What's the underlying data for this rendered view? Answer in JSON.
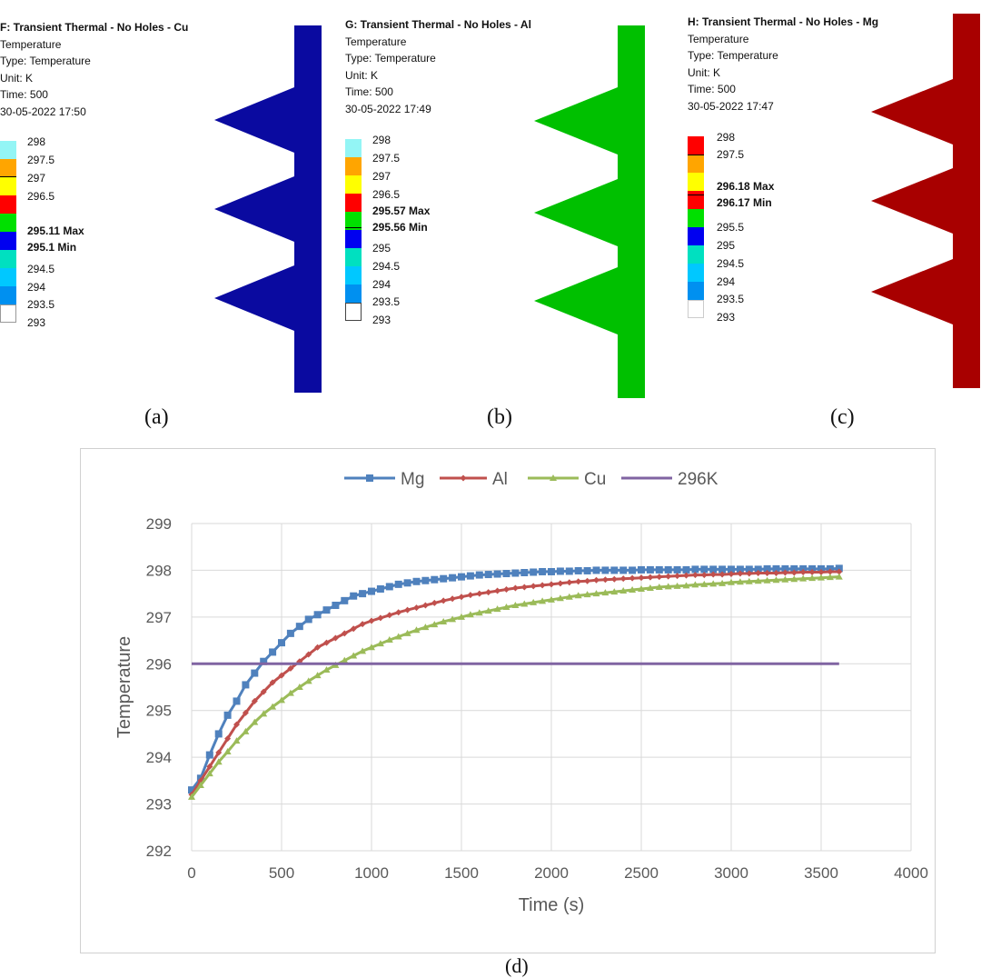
{
  "panels": [
    {
      "id": "a",
      "title": "F: Transient Thermal - No Holes - Cu",
      "lines": [
        "Temperature",
        "Type: Temperature",
        "Unit: K",
        "Time: 500",
        "30-05-2022 17:50"
      ],
      "legend": {
        "ticks": [
          "298",
          "297.5",
          "297",
          "296.5",
          "295.11 Max",
          "295.1 Min",
          "294.5",
          "294",
          "293.5",
          "293"
        ],
        "bold": [
          false,
          false,
          false,
          false,
          true,
          true,
          false,
          false,
          false,
          false
        ]
      },
      "fin_color": "#0a0aa0",
      "caption": "(a)"
    },
    {
      "id": "b",
      "title": "G: Transient Thermal - No Holes - Al",
      "lines": [
        "Temperature",
        "Type: Temperature",
        "Unit: K",
        "Time: 500",
        "30-05-2022 17:49"
      ],
      "legend": {
        "ticks": [
          "298",
          "297.5",
          "297",
          "296.5",
          "295.57 Max",
          "295.56 Min",
          "295",
          "294.5",
          "294",
          "293.5",
          "293"
        ],
        "bold": [
          false,
          false,
          false,
          false,
          true,
          true,
          false,
          false,
          false,
          false,
          false
        ]
      },
      "fin_color": "#00c000",
      "caption": "(b)"
    },
    {
      "id": "c",
      "title": "H: Transient Thermal - No Holes - Mg",
      "lines": [
        "Temperature",
        "Type: Temperature",
        "Unit: K",
        "Time: 500",
        "30-05-2022 17:47"
      ],
      "legend": {
        "ticks": [
          "298",
          "297.5",
          "296.18 Max",
          "296.17 Min",
          "295.5",
          "295",
          "294.5",
          "294",
          "293.5",
          "293"
        ],
        "bold": [
          false,
          false,
          true,
          true,
          false,
          false,
          false,
          false,
          false,
          false
        ]
      },
      "fin_color": "#a80000",
      "caption": "(c)"
    }
  ],
  "contour_colors": [
    "#93f5f5",
    "#ffa500",
    "#ffff00",
    "#ff0000",
    "#00e000",
    "#0000f0",
    "#00e0c0",
    "#00c8ff",
    "#0090f0",
    "#ffffff"
  ],
  "chart_caption": "(d)",
  "chart_data": {
    "type": "line",
    "title": "",
    "xlabel": "Time (s)",
    "ylabel": "Temperature",
    "xlim": [
      0,
      4000
    ],
    "ylim": [
      292,
      299
    ],
    "xticks": [
      0,
      500,
      1000,
      1500,
      2000,
      2500,
      3000,
      3500,
      4000
    ],
    "yticks": [
      292,
      293,
      294,
      295,
      296,
      297,
      298,
      299
    ],
    "grid": true,
    "legend_position": "top-center",
    "x": [
      0,
      50,
      100,
      150,
      200,
      250,
      300,
      350,
      400,
      450,
      500,
      550,
      600,
      650,
      700,
      750,
      800,
      850,
      900,
      950,
      1000,
      1050,
      1100,
      1150,
      1200,
      1250,
      1300,
      1350,
      1400,
      1450,
      1500,
      1550,
      1600,
      1650,
      1700,
      1750,
      1800,
      1850,
      1900,
      1950,
      2000,
      2050,
      2100,
      2150,
      2200,
      2250,
      2300,
      2350,
      2400,
      2450,
      2500,
      2550,
      2600,
      2650,
      2700,
      2750,
      2800,
      2850,
      2900,
      2950,
      3000,
      3050,
      3100,
      3150,
      3200,
      3250,
      3300,
      3350,
      3400,
      3450,
      3500,
      3550,
      3600
    ],
    "series": [
      {
        "name": "Mg",
        "color": "#4f81bd",
        "marker": "square",
        "values": [
          293.3,
          293.55,
          294.05,
          294.5,
          294.9,
          295.2,
          295.55,
          295.8,
          296.05,
          296.25,
          296.45,
          296.65,
          296.8,
          296.95,
          297.05,
          297.15,
          297.25,
          297.35,
          297.45,
          297.5,
          297.55,
          297.6,
          297.65,
          297.7,
          297.73,
          297.76,
          297.78,
          297.8,
          297.82,
          297.84,
          297.86,
          297.88,
          297.9,
          297.91,
          297.92,
          297.93,
          297.94,
          297.95,
          297.96,
          297.97,
          297.97,
          297.98,
          297.98,
          297.99,
          297.99,
          298.0,
          298.0,
          298.0,
          298.0,
          298.0,
          298.01,
          298.01,
          298.01,
          298.01,
          298.01,
          298.01,
          298.02,
          298.02,
          298.02,
          298.02,
          298.02,
          298.02,
          298.02,
          298.02,
          298.03,
          298.03,
          298.03,
          298.03,
          298.03,
          298.03,
          298.03,
          298.03,
          298.04
        ]
      },
      {
        "name": "Al",
        "color": "#c0504d",
        "marker": "diamond",
        "values": [
          293.2,
          293.5,
          293.8,
          294.1,
          294.4,
          294.7,
          294.95,
          295.2,
          295.4,
          295.6,
          295.75,
          295.9,
          296.05,
          296.2,
          296.35,
          296.45,
          296.55,
          296.65,
          296.75,
          296.85,
          296.92,
          296.98,
          297.04,
          297.1,
          297.15,
          297.2,
          297.25,
          297.3,
          297.35,
          297.39,
          297.43,
          297.47,
          297.5,
          297.53,
          297.56,
          297.59,
          297.62,
          297.64,
          297.66,
          297.68,
          297.7,
          297.72,
          297.74,
          297.76,
          297.77,
          297.79,
          297.8,
          297.81,
          297.82,
          297.83,
          297.84,
          297.85,
          297.86,
          297.87,
          297.88,
          297.89,
          297.9,
          297.9,
          297.91,
          297.91,
          297.92,
          297.93,
          297.93,
          297.94,
          297.94,
          297.94,
          297.95,
          297.95,
          297.96,
          297.96,
          297.96,
          297.97,
          297.97
        ]
      },
      {
        "name": "Cu",
        "color": "#9bbb59",
        "marker": "triangle",
        "values": [
          293.15,
          293.4,
          293.65,
          293.9,
          294.12,
          294.35,
          294.55,
          294.75,
          294.93,
          295.08,
          295.22,
          295.37,
          295.5,
          295.63,
          295.75,
          295.87,
          295.97,
          296.07,
          296.17,
          296.27,
          296.35,
          296.43,
          296.51,
          296.58,
          296.65,
          296.72,
          296.78,
          296.84,
          296.9,
          296.95,
          297.0,
          297.05,
          297.09,
          297.13,
          297.17,
          297.21,
          297.25,
          297.28,
          297.31,
          297.34,
          297.37,
          297.4,
          297.43,
          297.46,
          297.48,
          297.5,
          297.52,
          297.54,
          297.56,
          297.58,
          297.6,
          297.62,
          297.64,
          297.65,
          297.66,
          297.67,
          297.69,
          297.7,
          297.71,
          297.72,
          297.74,
          297.75,
          297.76,
          297.77,
          297.78,
          297.79,
          297.8,
          297.81,
          297.82,
          297.83,
          297.84,
          297.85,
          297.86
        ]
      },
      {
        "name": "296K",
        "color": "#8064a2",
        "marker": "none",
        "values": [
          296,
          296,
          296,
          296,
          296,
          296,
          296,
          296,
          296,
          296,
          296,
          296,
          296,
          296,
          296,
          296,
          296,
          296,
          296,
          296,
          296,
          296,
          296,
          296,
          296,
          296,
          296,
          296,
          296,
          296,
          296,
          296,
          296,
          296,
          296,
          296,
          296,
          296,
          296,
          296,
          296,
          296,
          296,
          296,
          296,
          296,
          296,
          296,
          296,
          296,
          296,
          296,
          296,
          296,
          296,
          296,
          296,
          296,
          296,
          296,
          296,
          296,
          296,
          296,
          296,
          296,
          296,
          296,
          296,
          296,
          296,
          296,
          296
        ]
      }
    ]
  }
}
